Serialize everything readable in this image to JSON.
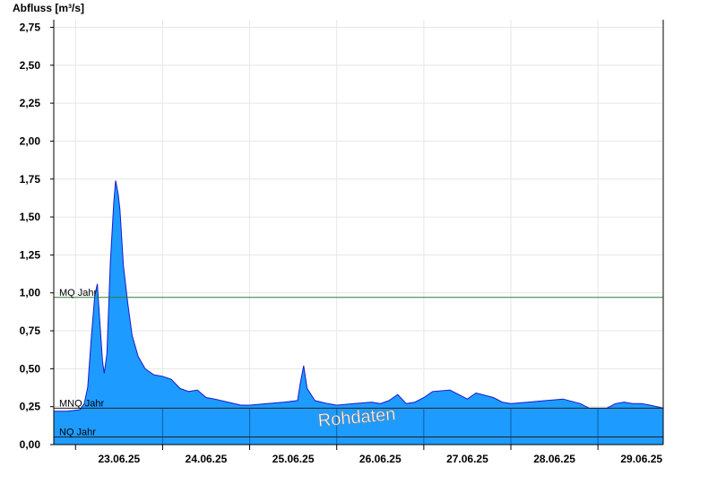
{
  "chart_data": {
    "type": "area",
    "ylabel": "Abfluss [m³/s]",
    "ylim": [
      0,
      2.8
    ],
    "ytick_values": [
      0,
      0.25,
      0.5,
      0.75,
      1.0,
      1.25,
      1.5,
      1.75,
      2.0,
      2.25,
      2.5,
      2.75
    ],
    "ytick_labels": [
      "0,00",
      "0,25",
      "0,50",
      "0,75",
      "1,00",
      "1,25",
      "1,50",
      "1,75",
      "2,00",
      "2,25",
      "2,50",
      "2,75"
    ],
    "x_range_days": [
      -0.25,
      6.75
    ],
    "day_starts": [
      0,
      1,
      2,
      3,
      4,
      5,
      6
    ],
    "day_labels": [
      "23.06.25",
      "24.06.25",
      "25.06.25",
      "26.06.25",
      "27.06.25",
      "28.06.25",
      "29.06.25"
    ],
    "grid": true,
    "series": [
      {
        "fill_color": "#1e9bff",
        "line_color": "#1a1acc",
        "points": [
          [
            -0.25,
            0.22
          ],
          [
            -0.1,
            0.22
          ],
          [
            0.05,
            0.23
          ],
          [
            0.1,
            0.27
          ],
          [
            0.14,
            0.38
          ],
          [
            0.18,
            0.7
          ],
          [
            0.22,
            0.98
          ],
          [
            0.25,
            1.06
          ],
          [
            0.28,
            0.8
          ],
          [
            0.31,
            0.55
          ],
          [
            0.33,
            0.47
          ],
          [
            0.36,
            0.6
          ],
          [
            0.4,
            1.2
          ],
          [
            0.44,
            1.6
          ],
          [
            0.46,
            1.74
          ],
          [
            0.49,
            1.65
          ],
          [
            0.51,
            1.55
          ],
          [
            0.55,
            1.18
          ],
          [
            0.6,
            0.93
          ],
          [
            0.65,
            0.72
          ],
          [
            0.72,
            0.58
          ],
          [
            0.8,
            0.5
          ],
          [
            0.9,
            0.46
          ],
          [
            1.0,
            0.45
          ],
          [
            1.1,
            0.43
          ],
          [
            1.2,
            0.37
          ],
          [
            1.3,
            0.35
          ],
          [
            1.4,
            0.36
          ],
          [
            1.5,
            0.31
          ],
          [
            1.6,
            0.3
          ],
          [
            1.75,
            0.28
          ],
          [
            1.9,
            0.26
          ],
          [
            2.0,
            0.26
          ],
          [
            2.2,
            0.27
          ],
          [
            2.4,
            0.28
          ],
          [
            2.55,
            0.29
          ],
          [
            2.58,
            0.4
          ],
          [
            2.62,
            0.52
          ],
          [
            2.66,
            0.37
          ],
          [
            2.75,
            0.29
          ],
          [
            2.9,
            0.27
          ],
          [
            3.0,
            0.26
          ],
          [
            3.2,
            0.27
          ],
          [
            3.4,
            0.28
          ],
          [
            3.5,
            0.27
          ],
          [
            3.6,
            0.29
          ],
          [
            3.7,
            0.33
          ],
          [
            3.8,
            0.27
          ],
          [
            3.9,
            0.28
          ],
          [
            4.0,
            0.31
          ],
          [
            4.1,
            0.35
          ],
          [
            4.3,
            0.36
          ],
          [
            4.4,
            0.33
          ],
          [
            4.5,
            0.3
          ],
          [
            4.6,
            0.34
          ],
          [
            4.8,
            0.31
          ],
          [
            4.9,
            0.28
          ],
          [
            5.0,
            0.27
          ],
          [
            5.2,
            0.28
          ],
          [
            5.4,
            0.29
          ],
          [
            5.6,
            0.3
          ],
          [
            5.8,
            0.27
          ],
          [
            5.9,
            0.24
          ],
          [
            6.0,
            0.24
          ],
          [
            6.1,
            0.24
          ],
          [
            6.2,
            0.27
          ],
          [
            6.3,
            0.28
          ],
          [
            6.4,
            0.27
          ],
          [
            6.5,
            0.27
          ],
          [
            6.6,
            0.26
          ],
          [
            6.75,
            0.24
          ]
        ]
      }
    ],
    "reference_lines": [
      {
        "label": "MQ Jahr",
        "value": 0.97,
        "color": "#2e7d32"
      },
      {
        "label": "MNQ Jahr",
        "value": 0.24,
        "color": "#222222"
      },
      {
        "label": "NQ Jahr",
        "value": 0.05,
        "color": "#222222"
      }
    ],
    "annotation": "Rohdaten"
  }
}
